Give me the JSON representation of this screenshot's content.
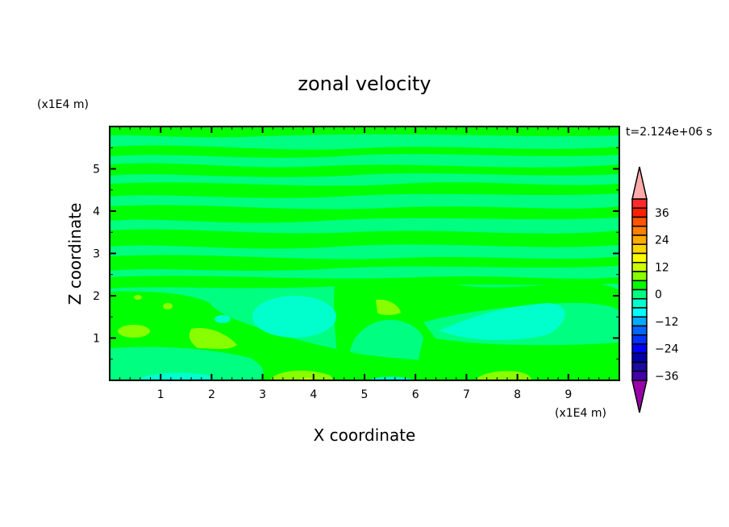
{
  "chart_data": {
    "type": "heatmap",
    "subtype": "filled-contour",
    "title": "zonal velocity",
    "xlabel": "X coordinate",
    "ylabel": "Z coordinate",
    "x_unit": "(x1E4 m)",
    "y_unit": "(x1E4 m)",
    "time_label": "t=2.124e+06 s",
    "xlim": [
      0,
      10
    ],
    "ylim": [
      0,
      6
    ],
    "x_ticks": [
      1,
      2,
      3,
      4,
      5,
      6,
      7,
      8,
      9
    ],
    "y_ticks": [
      1,
      2,
      3,
      4,
      5
    ],
    "grid": false,
    "colorbar": {
      "placement": "right",
      "levels": [
        -40,
        -36,
        -32,
        -28,
        -24,
        -20,
        -16,
        -12,
        -8,
        -4,
        0,
        4,
        8,
        12,
        16,
        20,
        24,
        28,
        32,
        36,
        40
      ],
      "tick_labels": [
        "36",
        "24",
        "12",
        "0",
        "-12",
        "-24",
        "-36"
      ],
      "tick_values": [
        36,
        24,
        12,
        0,
        -12,
        -24,
        -36
      ],
      "colors_top_to_bottom": [
        "#ff2a2a",
        "#ff2000",
        "#ff5500",
        "#ff7f00",
        "#ffaa00",
        "#ffd700",
        "#ffff00",
        "#ccff00",
        "#88ff00",
        "#00ff00",
        "#00ff80",
        "#00ffcc",
        "#00ffff",
        "#00aaff",
        "#0066ff",
        "#0033ff",
        "#0000ff",
        "#0000aa",
        "#1a0aa0",
        "#4400aa"
      ],
      "over_color": "#ffaaaa",
      "under_color": "#9900aa"
    },
    "dominant_range": [
      -8,
      12
    ]
  }
}
